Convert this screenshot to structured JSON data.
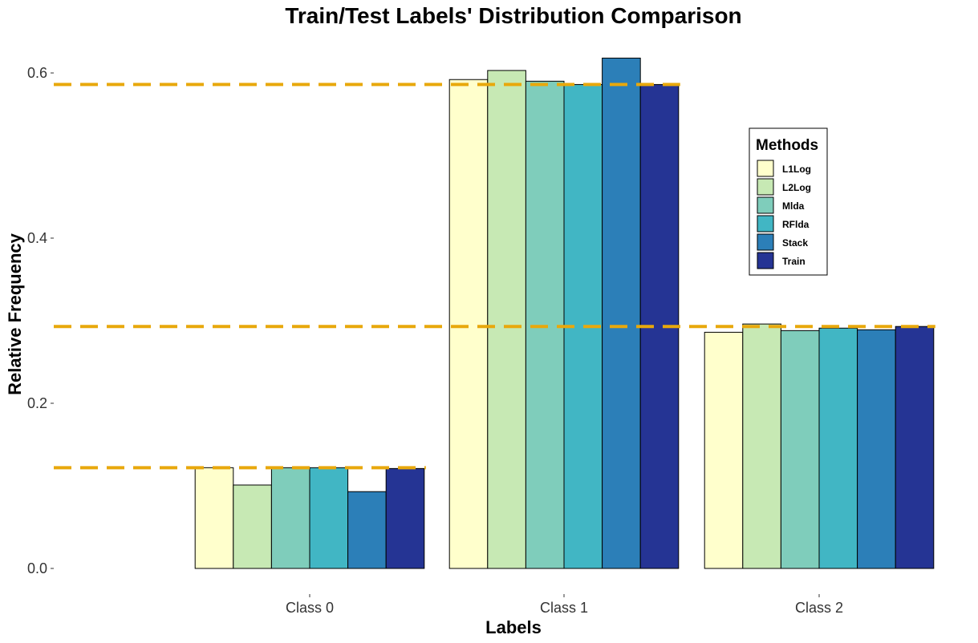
{
  "chart_data": {
    "type": "bar",
    "title": "Train/Test Labels' Distribution Comparison",
    "xlabel": "Labels",
    "ylabel": "Relative Frequency",
    "categories": [
      "Class 0",
      "Class 1",
      "Class 2"
    ],
    "series": [
      {
        "name": "L1Log",
        "values": [
          0.122,
          0.592,
          0.286
        ],
        "color": "#FFFFCC"
      },
      {
        "name": "L2Log",
        "values": [
          0.101,
          0.603,
          0.296
        ],
        "color": "#C7E9B4"
      },
      {
        "name": "Mlda",
        "values": [
          0.122,
          0.59,
          0.288
        ],
        "color": "#7FCDBB"
      },
      {
        "name": "RFlda",
        "values": [
          0.122,
          0.586,
          0.291
        ],
        "color": "#41B6C4"
      },
      {
        "name": "Stack",
        "values": [
          0.093,
          0.618,
          0.289
        ],
        "color": "#2C7FB8"
      },
      {
        "name": "Train",
        "values": [
          0.121,
          0.586,
          0.293
        ],
        "color": "#253494"
      }
    ],
    "reference_lines": [
      0.122,
      0.586,
      0.293
    ],
    "reference_line_color": "#E8A80C",
    "ylim": [
      0,
      0.63
    ],
    "yticks": [
      "0.0",
      "0.2",
      "0.4",
      "0.6"
    ],
    "legend": {
      "title": "Methods",
      "placement": "right"
    },
    "grid": false
  }
}
